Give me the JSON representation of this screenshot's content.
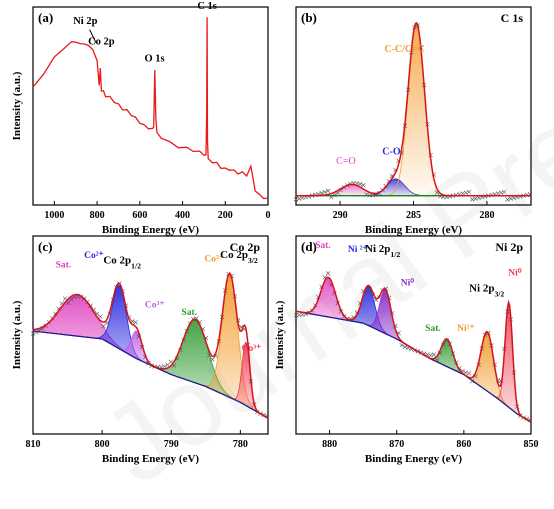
{
  "watermark": "Journal Pre-proof",
  "colors": {
    "survey": "#e8191b",
    "envelope": "#d4131c",
    "baseline": "#1f1a8f",
    "bg_c": "#0f8a0f",
    "cc": "#f39c2e",
    "co": "#2a2ae0",
    "c_eq_o": "#e040c0",
    "sat_pink": "#e040c0",
    "co2_blue": "#2a2ae0",
    "co3_violet": "#c060e8",
    "sat_green": "#2e9a2e",
    "co2_orange": "#f39c2e",
    "co3_red": "#ee3a50",
    "ni2_blue": "#2a2ae0",
    "ni0_purple": "#8a2ccc",
    "ni2_orange": "#f39c2e",
    "ni0_red": "#ee3a50",
    "data_marker": "#555555"
  },
  "chart_data": [
    {
      "panel": "(a)",
      "type": "line",
      "title": "",
      "xlabel": "Binding Energy (eV)",
      "ylabel": "Intensity (a.u.)",
      "xlim": [
        1100,
        0
      ],
      "x_ticks": [
        1000,
        800,
        600,
        400,
        200,
        0
      ],
      "series": [
        {
          "x": [
            1100,
            1050,
            1000,
            960,
            920,
            900,
            880,
            860,
            840,
            820,
            800,
            790,
            785,
            780,
            770,
            760,
            740,
            720,
            700,
            680,
            660,
            640,
            620,
            600,
            580,
            560,
            540,
            535,
            530,
            525,
            520,
            500,
            460,
            420,
            380,
            350,
            320,
            300,
            290,
            287,
            285,
            283,
            280,
            260,
            240,
            220,
            200,
            180,
            160,
            140,
            120,
            100,
            80,
            60,
            40,
            20,
            0
          ],
          "y": [
            0.62,
            0.7,
            0.78,
            0.83,
            0.86,
            0.87,
            0.85,
            0.86,
            0.84,
            0.83,
            0.76,
            0.64,
            0.72,
            0.61,
            0.6,
            0.58,
            0.57,
            0.55,
            0.53,
            0.51,
            0.5,
            0.48,
            0.46,
            0.44,
            0.42,
            0.41,
            0.4,
            0.42,
            0.71,
            0.47,
            0.38,
            0.36,
            0.33,
            0.31,
            0.3,
            0.29,
            0.28,
            0.27,
            0.26,
            0.5,
            0.99,
            0.35,
            0.24,
            0.23,
            0.22,
            0.2,
            0.19,
            0.19,
            0.18,
            0.17,
            0.17,
            0.16,
            0.2,
            0.08,
            0.05,
            0.04,
            0.03
          ]
        }
      ],
      "annotations": [
        {
          "text": "Ni 2p",
          "x": 855,
          "y": 0.96
        },
        {
          "text": "Co 2p",
          "x": 780,
          "y": 0.85
        },
        {
          "text": "O 1s",
          "x": 531,
          "y": 0.76
        },
        {
          "text": "C 1s",
          "x": 285,
          "y": 1.04
        }
      ]
    },
    {
      "panel": "(b)",
      "type": "area",
      "title": "C 1s",
      "xlabel": "Binding Energy (eV)",
      "ylabel": "",
      "xlim": [
        293,
        277
      ],
      "x_ticks": [
        290,
        285,
        280
      ],
      "background": 0.05,
      "peaks": [
        {
          "name": "C=O",
          "center": 289.2,
          "height": 0.06,
          "fwhm": 1.8
        },
        {
          "name": "C-O",
          "center": 286.2,
          "height": 0.09,
          "fwhm": 1.4
        },
        {
          "name": "C-C/C=C",
          "center": 284.8,
          "height": 0.92,
          "fwhm": 1.3
        }
      ]
    },
    {
      "panel": "(c)",
      "type": "area",
      "title": "Co 2p",
      "xlabel": "Binding Energy (eV)",
      "ylabel": "Intensity (a.u.)",
      "xlim": [
        810,
        776
      ],
      "x_ticks": [
        810,
        800,
        790,
        780
      ],
      "background": {
        "x": [
          810,
          800,
          795,
          790,
          785,
          780,
          776
        ],
        "y": [
          0.52,
          0.48,
          0.38,
          0.3,
          0.24,
          0.16,
          0.08
        ]
      },
      "peaks": [
        {
          "name": "Sat.",
          "center": 803.6,
          "height": 0.21,
          "fwhm": 5.8
        },
        {
          "name": "Co2+ 2p1/2",
          "center": 797.5,
          "height": 0.32,
          "fwhm": 2.4
        },
        {
          "name": "Co3+ 2p1/2",
          "center": 795.0,
          "height": 0.14,
          "fwhm": 1.8
        },
        {
          "name": "Sat.",
          "center": 786.5,
          "height": 0.32,
          "fwhm": 4.2
        },
        {
          "name": "Co2+ 2p3/2",
          "center": 781.5,
          "height": 0.62,
          "fwhm": 2.6
        },
        {
          "name": "Co3+ 2p3/2",
          "center": 779.2,
          "height": 0.32,
          "fwhm": 1.3
        }
      ],
      "labels": [
        {
          "text": "Sat.",
          "x": 805.6,
          "y": 0.84
        },
        {
          "text": "Co²⁺",
          "x": 801.2,
          "y": 0.89
        },
        {
          "text": "Co 2p",
          "sub": "1/2",
          "x": 797.1,
          "y": 0.86
        },
        {
          "text": "Co³⁺",
          "x": 792.4,
          "y": 0.64
        },
        {
          "text": "Sat.",
          "x": 787.4,
          "y": 0.6
        },
        {
          "text": "Co²⁺",
          "x": 783.8,
          "y": 0.87
        },
        {
          "text": "Co 2p",
          "sub": "3/2",
          "x": 780.2,
          "y": 0.89
        },
        {
          "text": "Co³⁺",
          "x": 778.4,
          "y": 0.42
        }
      ]
    },
    {
      "panel": "(d)",
      "type": "area",
      "title": "Ni 2p",
      "xlabel": "Binding Energy (eV)",
      "ylabel": "Intensity (a.u.)",
      "xlim": [
        885,
        850
      ],
      "x_ticks": [
        880,
        870,
        860,
        850
      ],
      "background": {
        "x": [
          885,
          875,
          870,
          865,
          860,
          855,
          852,
          850
        ],
        "y": [
          0.62,
          0.56,
          0.48,
          0.38,
          0.3,
          0.18,
          0.1,
          0.06
        ]
      },
      "peaks": [
        {
          "name": "Sat.",
          "center": 880.2,
          "height": 0.2,
          "fwhm": 2.6
        },
        {
          "name": "Ni2+ 2p1/2",
          "center": 874.2,
          "height": 0.2,
          "fwhm": 2.2
        },
        {
          "name": "Ni0",
          "center": 871.7,
          "height": 0.22,
          "fwhm": 2.0
        },
        {
          "name": "Sat.",
          "center": 862.5,
          "height": 0.14,
          "fwhm": 2.0
        },
        {
          "name": "Ni2+ 2p3/2",
          "center": 856.5,
          "height": 0.3,
          "fwhm": 2.2
        },
        {
          "name": "Ni0",
          "center": 853.3,
          "height": 0.53,
          "fwhm": 1.3
        }
      ],
      "labels": [
        {
          "text": "Sat.",
          "x": 881.0,
          "y": 0.94
        },
        {
          "text": "Ni ²⁺",
          "x": 875.8,
          "y": 0.92
        },
        {
          "text": "Ni 2p",
          "sub": "1/2",
          "x": 872.1,
          "y": 0.92
        },
        {
          "text": "Ni⁰",
          "x": 868.4,
          "y": 0.75
        },
        {
          "text": "Sat.",
          "x": 864.6,
          "y": 0.52
        },
        {
          "text": "Ni²⁺",
          "x": 859.7,
          "y": 0.52
        },
        {
          "text": "Ni 2p",
          "sub": "3/2",
          "x": 856.6,
          "y": 0.72
        },
        {
          "text": "Ni⁰",
          "x": 852.4,
          "y": 0.8
        }
      ]
    }
  ]
}
